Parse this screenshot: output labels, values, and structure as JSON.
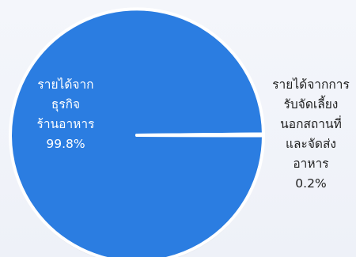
{
  "chart_data": {
    "type": "pie",
    "slices": [
      {
        "label_lines": [
          "รายได้จาก",
          "ธุรกิจ",
          "ร้านอาหาร"
        ],
        "value_text": "99.8%",
        "value": 99.8,
        "color": "#2b7de1",
        "label_color": "#ffffff"
      },
      {
        "label_lines": [
          "รายได้จากการ",
          "รับจัดเลี้ยง",
          "นอกสถานที่",
          "และจัดส่ง",
          "อาหาร"
        ],
        "value_text": "0.2%",
        "value": 0.2,
        "color": "#ffffff",
        "label_color": "#1f1f1f"
      }
    ],
    "legend": "none"
  }
}
